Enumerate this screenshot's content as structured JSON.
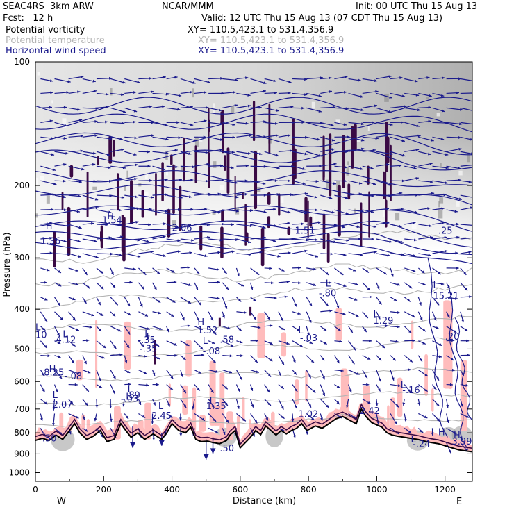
{
  "header": {
    "model": "SEAC4RS  3km ARW",
    "center": "NCAR/MMM",
    "init": "Init: 00 UTC Thu 15 Aug 13",
    "fcst": "Fcst:   12 h",
    "valid": "Valid: 12 UTC Thu 15 Aug 13 (07 CDT Thu 15 Aug 13)",
    "fields": [
      {
        "name": "Potential vorticity",
        "xy": "XY= 110.5,423.1 to 531.4,356.9",
        "color": "#000000"
      },
      {
        "name": "Potential temperature",
        "xy": "XY= 110.5,423.1 to 531.4,356.9",
        "color": "#b4b4b4"
      },
      {
        "name": "Horizontal wind speed",
        "xy": "XY= 110.5,423.1 to 531.4,356.9",
        "color": "#1a1a8c"
      }
    ]
  },
  "chart_data": {
    "type": "cross-section",
    "xlabel": "Distance (km)",
    "ylabel": "Pressure (hPa)",
    "xlim": [
      0,
      1280
    ],
    "ylim": [
      1050,
      100
    ],
    "y_scale": "log-pressure",
    "x_ticks": [
      0,
      200,
      400,
      600,
      800,
      1000,
      1200
    ],
    "y_ticks": [
      100,
      200,
      300,
      400,
      500,
      600,
      700,
      800,
      900,
      1000
    ],
    "x_end_labels": {
      "left": "W",
      "right": "E"
    },
    "terrain": [
      [
        0,
        835
      ],
      [
        20,
        825
      ],
      [
        40,
        835
      ],
      [
        60,
        810
      ],
      [
        80,
        830
      ],
      [
        100,
        790
      ],
      [
        115,
        760
      ],
      [
        130,
        800
      ],
      [
        150,
        830
      ],
      [
        170,
        815
      ],
      [
        190,
        790
      ],
      [
        210,
        840
      ],
      [
        230,
        830
      ],
      [
        250,
        760
      ],
      [
        265,
        790
      ],
      [
        280,
        820
      ],
      [
        300,
        800
      ],
      [
        320,
        830
      ],
      [
        345,
        805
      ],
      [
        370,
        830
      ],
      [
        385,
        800
      ],
      [
        400,
        760
      ],
      [
        420,
        790
      ],
      [
        440,
        800
      ],
      [
        455,
        775
      ],
      [
        470,
        830
      ],
      [
        485,
        840
      ],
      [
        505,
        838
      ],
      [
        520,
        845
      ],
      [
        540,
        850
      ],
      [
        560,
        835
      ],
      [
        570,
        810
      ],
      [
        585,
        790
      ],
      [
        600,
        870
      ],
      [
        615,
        845
      ],
      [
        630,
        820
      ],
      [
        645,
        790
      ],
      [
        660,
        808
      ],
      [
        675,
        770
      ],
      [
        690,
        790
      ],
      [
        705,
        810
      ],
      [
        720,
        790
      ],
      [
        735,
        805
      ],
      [
        750,
        790
      ],
      [
        765,
        780
      ],
      [
        780,
        760
      ],
      [
        795,
        790
      ],
      [
        820,
        770
      ],
      [
        840,
        780
      ],
      [
        860,
        760
      ],
      [
        880,
        740
      ],
      [
        900,
        730
      ],
      [
        920,
        745
      ],
      [
        940,
        760
      ],
      [
        955,
        700
      ],
      [
        968,
        730
      ],
      [
        985,
        755
      ],
      [
        1000,
        765
      ],
      [
        1015,
        775
      ],
      [
        1030,
        800
      ],
      [
        1045,
        810
      ],
      [
        1060,
        815
      ],
      [
        1080,
        820
      ],
      [
        1100,
        825
      ],
      [
        1120,
        830
      ],
      [
        1140,
        838
      ],
      [
        1160,
        845
      ],
      [
        1180,
        850
      ],
      [
        1200,
        860
      ],
      [
        1220,
        870
      ],
      [
        1240,
        880
      ],
      [
        1260,
        885
      ],
      [
        1280,
        890
      ]
    ],
    "labels": [
      {
        "text": "H",
        "x": 30,
        "p": 255
      },
      {
        "text": "1.36",
        "x": 15,
        "p": 278
      },
      {
        "text": "L",
        "x": 0,
        "p": 450
      },
      {
        "text": "10",
        "x": 0,
        "p": 470
      },
      {
        "text": "L",
        "x": 80,
        "p": 468
      },
      {
        "text": "4.12",
        "x": 60,
        "p": 483
      },
      {
        "text": "H",
        "x": 40,
        "p": 570
      },
      {
        "text": "8.25",
        "x": 25,
        "p": 580
      },
      {
        "text": "-.08",
        "x": 85,
        "p": 593
      },
      {
        "text": "L",
        "x": 50,
        "p": 658
      },
      {
        "text": "2.07",
        "x": 50,
        "p": 695
      },
      {
        "text": "L",
        "x": 320,
        "p": 466
      },
      {
        "text": "-.35",
        "x": 300,
        "p": 484
      },
      {
        "text": "L",
        "x": 325,
        "p": 476
      },
      {
        "text": "-.35",
        "x": 305,
        "p": 508
      },
      {
        "text": "H",
        "x": 475,
        "p": 437
      },
      {
        "text": "1.52",
        "x": 475,
        "p": 458
      },
      {
        "text": ".58",
        "x": 540,
        "p": 483
      },
      {
        "text": "L",
        "x": 490,
        "p": 486
      },
      {
        "text": "-.08",
        "x": 490,
        "p": 515
      },
      {
        "text": "L",
        "x": 270,
        "p": 638
      },
      {
        "text": ".89",
        "x": 265,
        "p": 660
      },
      {
        "text": "L",
        "x": 265,
        "p": 665
      },
      {
        "text": "-.03",
        "x": 250,
        "p": 673
      },
      {
        "text": "L",
        "x": 360,
        "p": 700
      },
      {
        "text": "2.45",
        "x": 340,
        "p": 740
      },
      {
        "text": "L",
        "x": 510,
        "p": 682
      },
      {
        "text": "1.35",
        "x": 500,
        "p": 700
      },
      {
        "text": "L",
        "x": 770,
        "p": 458
      },
      {
        "text": "-.03",
        "x": 775,
        "p": 478
      },
      {
        "text": "L",
        "x": 850,
        "p": 352
      },
      {
        "text": "-.80",
        "x": 830,
        "p": 372
      },
      {
        "text": "L",
        "x": 990,
        "p": 418
      },
      {
        "text": "1.29",
        "x": 990,
        "p": 434
      },
      {
        "text": "L",
        "x": 1070,
        "p": 622
      },
      {
        "text": "-.16",
        "x": 1075,
        "p": 640
      },
      {
        "text": "L",
        "x": 1165,
        "p": 356
      },
      {
        "text": "15.21",
        "x": 1165,
        "p": 378
      },
      {
        "text": "H",
        "x": 210,
        "p": 242
      },
      {
        "text": "1.54",
        "x": 195,
        "p": 247
      },
      {
        "text": "2.06",
        "x": 400,
        "p": 258
      },
      {
        "text": "1.51",
        "x": 760,
        "p": 262
      },
      {
        "text": "1.02",
        "x": 770,
        "p": 732
      },
      {
        "text": ".25",
        "x": 1180,
        "p": 262
      },
      {
        "text": ".20",
        "x": 1200,
        "p": 475
      },
      {
        "text": "2.42",
        "x": 950,
        "p": 720
      },
      {
        "text": "3.99",
        "x": 1220,
        "p": 855
      },
      {
        "text": "H",
        "x": 1225,
        "p": 825
      },
      {
        "text": "-.24",
        "x": 1105,
        "p": 866
      },
      {
        "text": "L",
        "x": 1100,
        "p": 845
      },
      {
        "text": ".50",
        "x": 540,
        "p": 888
      },
      {
        "text": ".50",
        "x": 20,
        "p": 840
      },
      {
        "text": "H",
        "x": 1180,
        "p": 810
      }
    ]
  }
}
